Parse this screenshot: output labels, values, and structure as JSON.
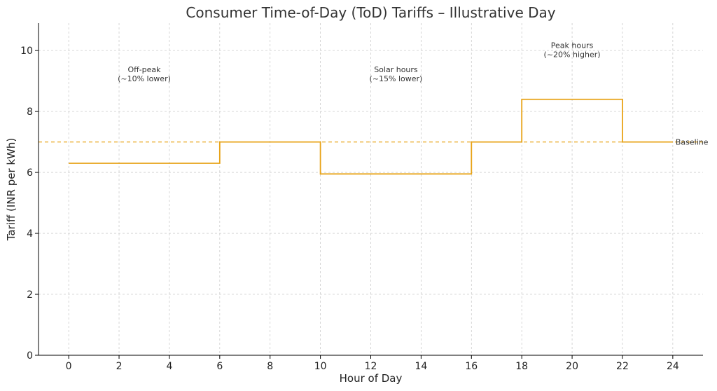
{
  "chart_data": {
    "type": "line",
    "step": "post",
    "title": "Consumer Time-of-Day (ToD) Tariffs – Illustrative Day",
    "xlabel": "Hour of Day",
    "ylabel": "Tariff (INR per kWh)",
    "xlim": [
      -1.2,
      25.2
    ],
    "ylim": [
      0,
      10.9
    ],
    "xticks": [
      0,
      2,
      4,
      6,
      8,
      10,
      12,
      14,
      16,
      18,
      20,
      22,
      24
    ],
    "yticks": [
      0,
      2,
      4,
      6,
      8,
      10
    ],
    "grid": true,
    "color": "#E8A317",
    "series": [
      {
        "x": [
          0,
          6,
          10,
          16,
          18,
          22,
          24
        ],
        "y": [
          6.3,
          7.0,
          5.95,
          7.0,
          8.4,
          7.0,
          7.0
        ]
      }
    ],
    "baseline": {
      "value": 7.0,
      "label": "Baseline"
    },
    "annotations": [
      {
        "x": 3,
        "y": 9.15,
        "line1": "Off-peak",
        "line2": "(~10% lower)"
      },
      {
        "x": 13,
        "y": 9.15,
        "line1": "Solar hours",
        "line2": "(~15% lower)"
      },
      {
        "x": 20,
        "y": 9.95,
        "line1": "Peak hours",
        "line2": "(~20% higher)"
      }
    ]
  }
}
